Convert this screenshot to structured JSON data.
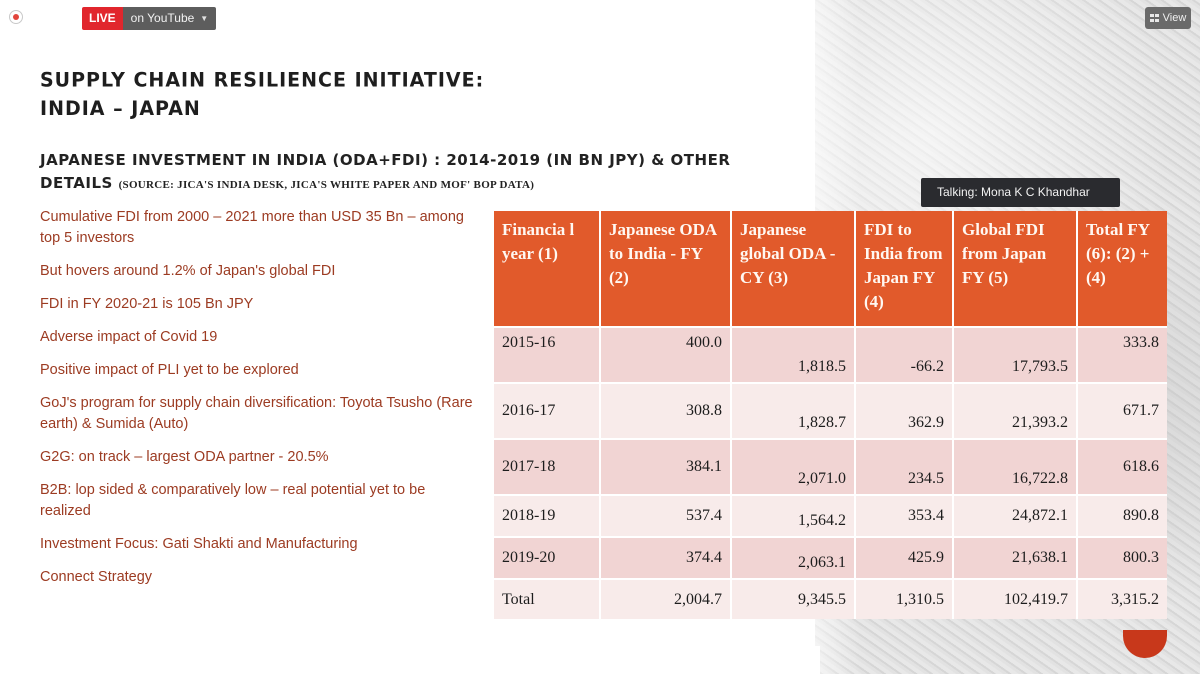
{
  "topbar": {
    "live_label": "LIVE",
    "youtube_label": "on YouTube",
    "view_label": "View"
  },
  "slide": {
    "title_line1": "Supply Chain Resilience Initiative:",
    "title_line2": "India – Japan",
    "subtitle": "Japanese Investment in India (ODA+FDI) : 2014-2019 (in Bn JPY) & other details",
    "source": "(Source: JICA's India Desk, JICA's White paper and MoF' BoP data)",
    "bullets": [
      "Cumulative FDI from 2000 – 2021 more than USD 35 Bn – among top 5 investors",
      "But hovers around 1.2% of Japan's global FDI",
      "FDI in FY 2020-21 is 105 Bn JPY",
      "Adverse impact of Covid 19",
      "Positive impact of PLI yet to be explored",
      "GoJ's program for supply chain diversification: Toyota Tsusho (Rare earth) & Sumida (Auto)",
      "G2G: on track – largest ODA partner - 20.5%",
      "B2B: lop sided & comparatively low – real potential yet to be realized",
      "Investment Focus: Gati Shakti and Manufacturing",
      "Connect Strategy"
    ]
  },
  "talking": "Talking: Mona K C Khandhar",
  "table": {
    "headers": [
      "Financia l year (1)",
      "Japanese ODA to India - FY (2)",
      "Japanese global ODA - CY (3)",
      "FDI to India from Japan FY (4)",
      "Global FDI from Japan FY (5)",
      "Total FY (6): (2) + (4)"
    ],
    "rows": [
      [
        "2015-16",
        "400.0",
        "1,818.5",
        "-66.2",
        "17,793.5",
        "333.8"
      ],
      [
        "2016-17",
        "308.8",
        "1,828.7",
        "362.9",
        "21,393.2",
        "671.7"
      ],
      [
        "2017-18",
        "384.1",
        "2,071.0",
        "234.5",
        "16,722.8",
        "618.6"
      ],
      [
        "2018-19",
        "537.4",
        "1,564.2",
        "353.4",
        "24,872.1",
        "890.8"
      ],
      [
        "2019-20",
        "374.4",
        "2,063.1",
        "425.9",
        "21,638.1",
        "800.3"
      ],
      [
        "Total",
        "2,004.7",
        "9,345.5",
        "1,310.5",
        "102,419.7",
        "3,315.2"
      ]
    ]
  }
}
